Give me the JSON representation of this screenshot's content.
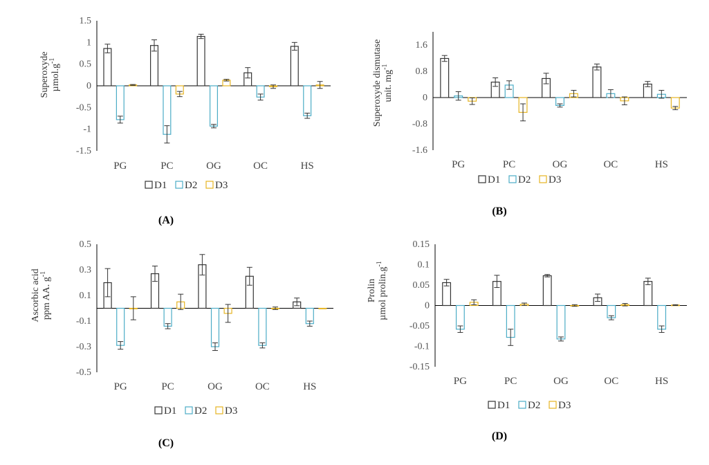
{
  "colors": {
    "D1": "#333333",
    "D2": "#4BACC6",
    "D3": "#E6B422",
    "axis": "#000000"
  },
  "legend": [
    "D1",
    "D2",
    "D3"
  ],
  "chart_data": [
    {
      "type": "bar",
      "panel_label": "(A)",
      "ylabel_lines": [
        "Superoxyde",
        "µmol.g",
        "-1"
      ],
      "ylim": [
        -1.5,
        1.5
      ],
      "yticks": [
        -1.5,
        -1,
        -0.5,
        0,
        0.5,
        1,
        1.5
      ],
      "ytick_labels": [
        "-1.5",
        "-1",
        "-0.5",
        "0",
        "0.5",
        "1",
        "1.5"
      ],
      "categories": [
        "PG",
        "PC",
        "OG",
        "OC",
        "HS"
      ],
      "series": [
        {
          "name": "D1",
          "values": [
            0.86,
            0.93,
            1.14,
            0.3,
            0.91
          ],
          "errors": [
            0.1,
            0.13,
            0.05,
            0.12,
            0.09
          ]
        },
        {
          "name": "D2",
          "values": [
            -0.78,
            -1.12,
            -0.93,
            -0.26,
            -0.69
          ],
          "errors": [
            0.08,
            0.2,
            0.04,
            0.07,
            0.06
          ]
        },
        {
          "name": "D3",
          "values": [
            0.02,
            -0.19,
            0.13,
            -0.02,
            0.02
          ],
          "errors": [
            0.01,
            0.06,
            0.02,
            0.04,
            0.08
          ]
        }
      ]
    },
    {
      "type": "bar",
      "panel_label": "(B)",
      "ylabel_lines": [
        "Superoxyde dismutase",
        "unit. mg",
        "-1"
      ],
      "ylim": [
        -1.6,
        2.0
      ],
      "yticks": [
        -1.6,
        -0.8,
        0,
        0.8,
        1.6
      ],
      "ytick_labels": [
        "-1.6",
        "-0.8",
        "0",
        "0.8",
        "1.6"
      ],
      "categories": [
        "PG",
        "PC",
        "OG",
        "OC",
        "HS"
      ],
      "series": [
        {
          "name": "D1",
          "values": [
            1.19,
            0.47,
            0.58,
            0.93,
            0.41
          ],
          "errors": [
            0.09,
            0.13,
            0.16,
            0.09,
            0.08
          ]
        },
        {
          "name": "D2",
          "values": [
            0.05,
            0.38,
            -0.24,
            0.12,
            0.1
          ],
          "errors": [
            0.13,
            0.13,
            0.05,
            0.12,
            0.12
          ]
        },
        {
          "name": "D3",
          "values": [
            -0.11,
            -0.45,
            0.12,
            -0.1,
            -0.32
          ],
          "errors": [
            0.1,
            0.26,
            0.1,
            0.12,
            0.05
          ]
        }
      ]
    },
    {
      "type": "bar",
      "panel_label": "(C)",
      "ylabel_lines": [
        "Ascorbic acid",
        "ppm AA. g",
        "-1"
      ],
      "ylim": [
        -0.5,
        0.5
      ],
      "yticks": [
        -0.5,
        -0.3,
        -0.1,
        0.1,
        0.3,
        0.5
      ],
      "ytick_labels": [
        "-0.5",
        "-0.3",
        "-0.1",
        "0.1",
        "0.3",
        "0.5"
      ],
      "categories": [
        "PG",
        "PC",
        "OG",
        "OC",
        "HS"
      ],
      "series": [
        {
          "name": "D1",
          "values": [
            0.2,
            0.27,
            0.34,
            0.25,
            0.05
          ],
          "errors": [
            0.11,
            0.06,
            0.08,
            0.07,
            0.03
          ]
        },
        {
          "name": "D2",
          "values": [
            -0.29,
            -0.14,
            -0.3,
            -0.29,
            -0.12
          ],
          "errors": [
            0.03,
            0.02,
            0.03,
            0.02,
            0.02
          ]
        },
        {
          "name": "D3",
          "values": [
            0.0,
            0.05,
            -0.04,
            0.0,
            0.0
          ],
          "errors": [
            0.09,
            0.06,
            0.07,
            0.01,
            0.0
          ]
        }
      ]
    },
    {
      "type": "bar",
      "panel_label": "(D)",
      "ylabel_lines": [
        "Prolin",
        "µmol prolin.g",
        "-1"
      ],
      "ylim": [
        -0.15,
        0.15
      ],
      "yticks": [
        -0.15,
        -0.1,
        -0.05,
        0,
        0.05,
        0.1,
        0.15
      ],
      "ytick_labels": [
        "-0.15",
        "-0.1",
        "-0.05",
        "0",
        "0.05",
        "0.1",
        "0.15"
      ],
      "categories": [
        "PG",
        "PC",
        "OG",
        "OC",
        "HS"
      ],
      "series": [
        {
          "name": "D1",
          "values": [
            0.056,
            0.059,
            0.073,
            0.019,
            0.059
          ],
          "errors": [
            0.008,
            0.015,
            0.003,
            0.009,
            0.008
          ]
        },
        {
          "name": "D2",
          "values": [
            -0.058,
            -0.078,
            -0.082,
            -0.03,
            -0.058
          ],
          "errors": [
            0.008,
            0.02,
            0.005,
            0.005,
            0.008
          ]
        },
        {
          "name": "D3",
          "values": [
            0.008,
            0.003,
            0.0,
            0.002,
            0.001
          ],
          "errors": [
            0.006,
            0.003,
            0.002,
            0.003,
            0.001
          ]
        }
      ]
    }
  ]
}
